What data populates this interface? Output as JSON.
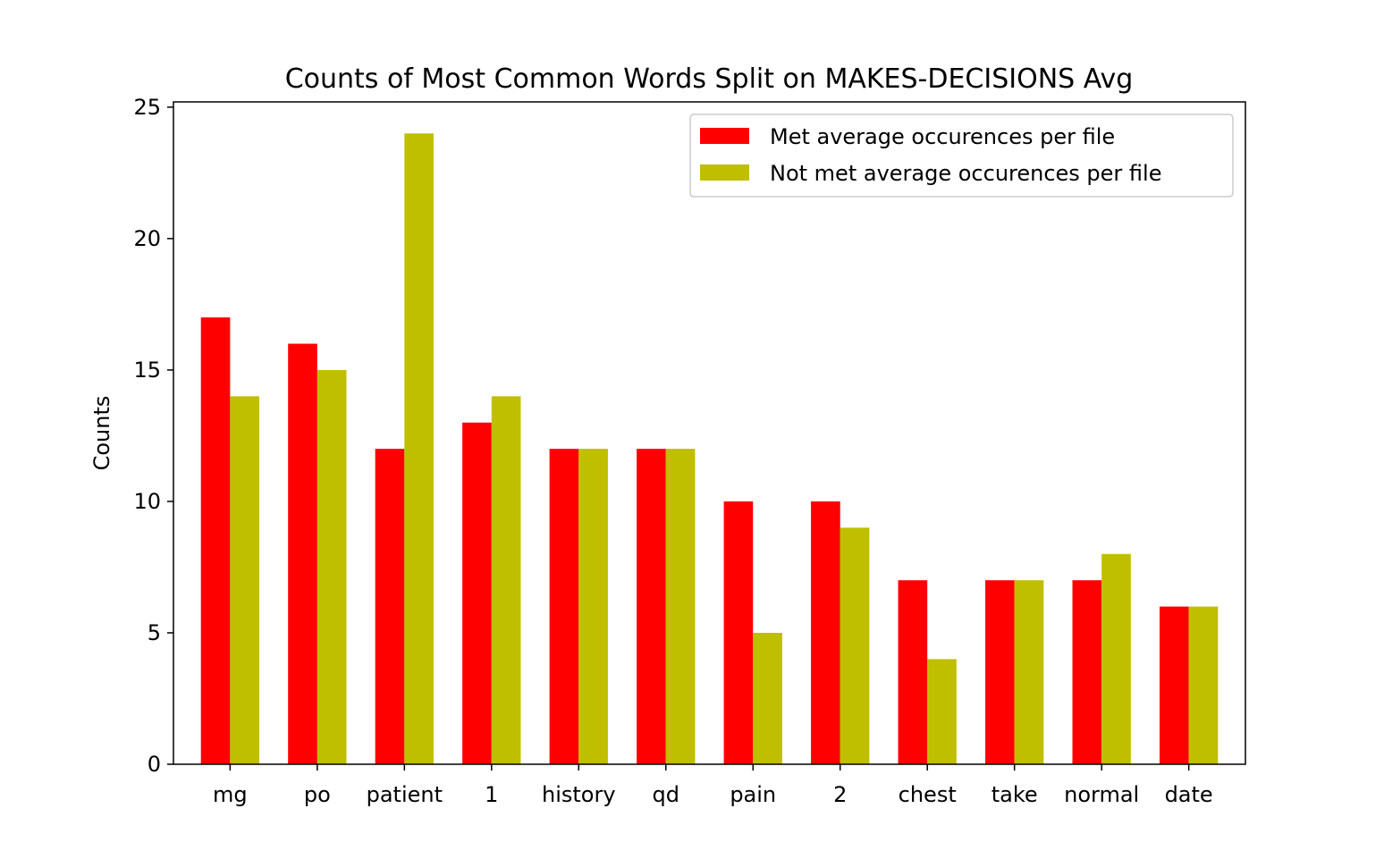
{
  "chart_data": {
    "type": "bar",
    "title": "Counts of Most Common Words Split on MAKES-DECISIONS Avg",
    "xlabel": "",
    "ylabel": "Counts",
    "categories": [
      "mg",
      "po",
      "patient",
      "1",
      "history",
      "qd",
      "pain",
      "2",
      "chest",
      "take",
      "normal",
      "date"
    ],
    "series": [
      {
        "name": "Met average occurences per file",
        "color": "#ff0000",
        "values": [
          17,
          16,
          12,
          13,
          12,
          12,
          10,
          10,
          7,
          7,
          7,
          6
        ]
      },
      {
        "name": "Not met average occurences per file",
        "color": "#bfbf00",
        "values": [
          14,
          15,
          24,
          14,
          12,
          12,
          5,
          9,
          4,
          7,
          8,
          6
        ]
      }
    ],
    "ylim": [
      0,
      25.2
    ],
    "yticks": [
      0,
      5,
      10,
      15,
      20,
      25
    ],
    "grid": false,
    "legend_position": "top-right"
  }
}
